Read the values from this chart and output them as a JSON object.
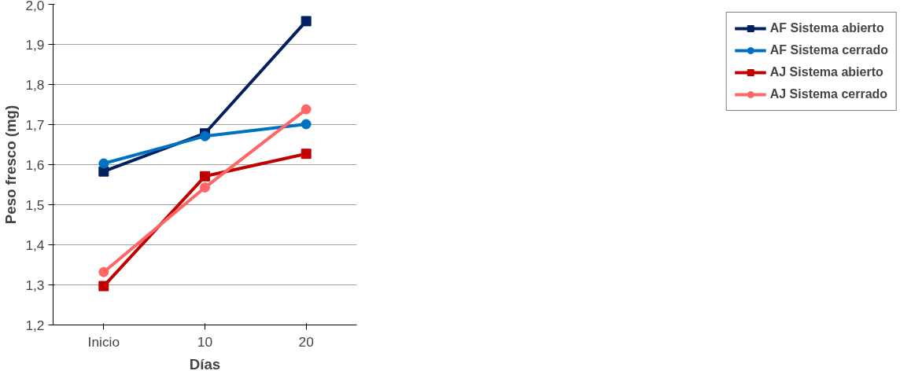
{
  "chart_data": {
    "type": "line",
    "xlabel": "Días",
    "ylabel": "Peso fresco (mg)",
    "categories": [
      "Inicio",
      "10",
      "20"
    ],
    "series": [
      {
        "name": "AF Sistema abierto",
        "color": "#002060",
        "marker": "square",
        "values": [
          1.583,
          1.678,
          1.958
        ]
      },
      {
        "name": "AF Sistema cerrado",
        "color": "#0070c0",
        "marker": "circle",
        "values": [
          1.603,
          1.671,
          1.701
        ]
      },
      {
        "name": "AJ Sistema abierto",
        "color": "#c00000",
        "marker": "square",
        "values": [
          1.297,
          1.571,
          1.627
        ]
      },
      {
        "name": "AJ Sistema cerrado",
        "color": "#ff6666",
        "marker": "circle",
        "values": [
          1.332,
          1.543,
          1.738
        ]
      }
    ],
    "ylim": [
      1.2,
      2.0
    ],
    "yticks": [
      {
        "value": 1.2,
        "label": "1,2"
      },
      {
        "value": 1.3,
        "label": "1,3"
      },
      {
        "value": 1.4,
        "label": "1,4"
      },
      {
        "value": 1.5,
        "label": "1,5"
      },
      {
        "value": 1.6,
        "label": "1,6"
      },
      {
        "value": 1.7,
        "label": "1,7"
      },
      {
        "value": 1.8,
        "label": "1,8"
      },
      {
        "value": 1.9,
        "label": "1,9"
      },
      {
        "value": 2.0,
        "label": "2,0"
      }
    ],
    "grid": "y",
    "legend": "right",
    "line_style": "solid"
  }
}
